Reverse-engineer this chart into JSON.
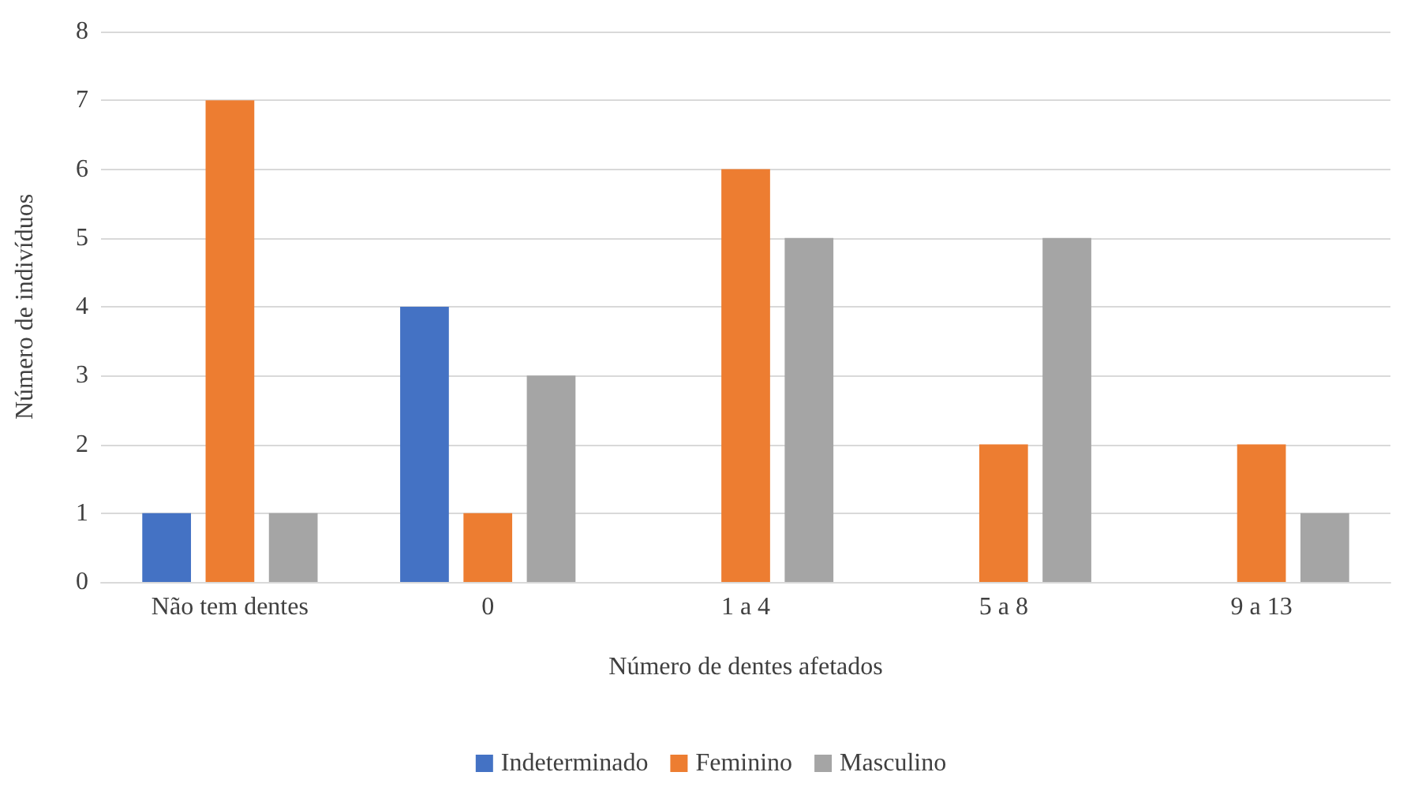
{
  "chart_data": {
    "type": "bar",
    "xlabel": "Número de dentes afetados",
    "ylabel": "Número de indivíduos",
    "categories": [
      "Não tem dentes",
      "0",
      "1 a 4",
      "5 a 8",
      "9 a 13"
    ],
    "series": [
      {
        "name": "Indeterminado",
        "color": "#4472c4",
        "values": [
          1,
          4,
          0,
          0,
          0
        ]
      },
      {
        "name": "Feminino",
        "color": "#ed7d31",
        "values": [
          7,
          1,
          6,
          2,
          2
        ]
      },
      {
        "name": "Masculino",
        "color": "#a5a5a5",
        "values": [
          1,
          3,
          5,
          5,
          1
        ]
      }
    ],
    "ylim": [
      0,
      8
    ],
    "yticks": [
      0,
      1,
      2,
      3,
      4,
      5,
      6,
      7,
      8
    ],
    "grid": "y",
    "legend": "bottom"
  }
}
